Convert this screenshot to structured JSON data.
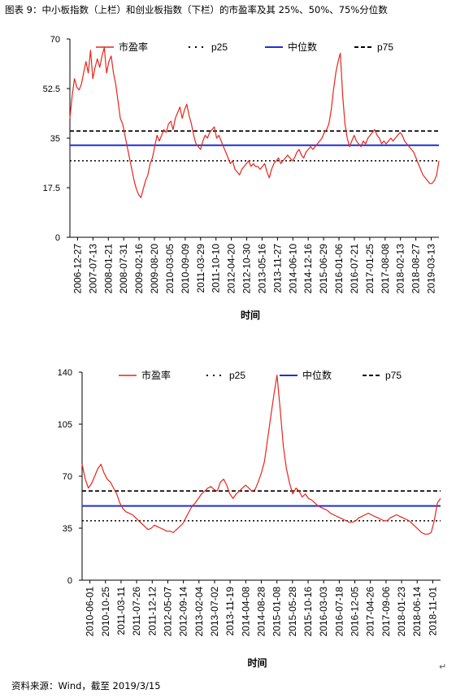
{
  "caption": "图表 9：中小板指数（上栏）和创业板指数（下栏）的市盈率及其 25%、50%、75%分位数",
  "source": "资料来源：Wind，截至 2019/3/15",
  "return_mark": "↵",
  "chart_data": [
    {
      "type": "line",
      "xlabel": "时间",
      "ylim": [
        0,
        70
      ],
      "yticks": [
        "0",
        "17.5",
        "35",
        "52.5",
        "70"
      ],
      "xticks": [
        "2006-12-27",
        "2007-07-13",
        "2008-01-21",
        "2008-07-31",
        "2009-02-16",
        "2009-08-20",
        "2010-03-05",
        "2010-09-09",
        "2011-03-29",
        "2011-10-10",
        "2012-04-20",
        "2012-10-30",
        "2013-05-16",
        "2013-11-27",
        "2014-06-10",
        "2014-12-16",
        "2015-06-29",
        "2016-01-06",
        "2016-07-21",
        "2017-01-25",
        "2017-08-08",
        "2018-02-13",
        "2018-08-27",
        "2019-03-13"
      ],
      "legend": [
        "市盈率",
        "p25",
        "中位数",
        "p75"
      ],
      "p25": 27,
      "median": 32.5,
      "p75": 37.5,
      "colors": {
        "pe": "#e8251b",
        "median": "#1f2fd6",
        "p": "#000000"
      },
      "series": [
        {
          "name": "市盈率",
          "values": [
            42,
            50,
            56,
            53,
            52,
            54,
            58,
            62,
            58,
            66,
            56,
            60,
            63,
            60,
            64,
            67,
            58,
            62,
            64,
            58,
            54,
            48,
            42,
            40,
            36,
            32,
            28,
            24,
            20,
            17,
            15,
            14,
            17,
            20,
            22,
            26,
            28,
            32,
            36,
            34,
            36,
            38,
            37,
            40,
            41,
            38,
            42,
            44,
            46,
            42,
            45,
            47,
            43,
            40,
            36,
            33,
            32,
            31,
            34,
            36,
            35,
            37,
            38,
            39,
            35,
            36,
            34,
            32,
            30,
            28,
            26,
            27,
            24,
            23,
            22,
            24,
            25,
            26,
            27,
            25,
            26,
            25,
            25,
            24,
            25,
            26,
            23,
            21,
            24,
            26,
            27,
            28,
            26,
            27,
            28,
            29,
            28,
            27,
            28,
            30,
            31,
            29,
            28,
            30,
            31,
            32,
            31,
            32,
            33,
            34,
            35,
            37,
            38,
            40,
            45,
            52,
            58,
            62,
            65,
            50,
            40,
            35,
            32,
            34,
            36,
            34,
            33,
            32,
            34,
            33,
            35,
            36,
            37,
            38,
            36,
            35,
            33,
            34,
            33,
            34,
            35,
            34,
            35,
            36,
            37,
            36,
            34,
            33,
            32,
            31,
            30,
            28,
            26,
            24,
            22,
            21,
            20,
            19,
            19,
            20,
            22,
            27
          ]
        }
      ]
    },
    {
      "type": "line",
      "xlabel": "时间",
      "ylim": [
        0,
        140
      ],
      "yticks": [
        "0",
        "35",
        "70",
        "105",
        "140"
      ],
      "xticks": [
        "2010-06-01",
        "2010-10-25",
        "2011-03-11",
        "2011-07-26",
        "2011-12-12",
        "2012-05-07",
        "2012-09-14",
        "2013-02-04",
        "2013-07-02",
        "2013-11-19",
        "2014-04-08",
        "2014-08-28",
        "2015-01-08",
        "2015-05-28",
        "2015-10-16",
        "2016-03-03",
        "2016-07-18",
        "2016-12-05",
        "2017-04-26",
        "2017-09-06",
        "2018-01-23",
        "2018-06-14",
        "2018-11-01"
      ],
      "legend": [
        "市盈率",
        "p25",
        "中位数",
        "p75"
      ],
      "p25": 40,
      "median": 50,
      "p75": 60,
      "colors": {
        "pe": "#e8251b",
        "median": "#1f2fd6",
        "p": "#000000"
      },
      "series": [
        {
          "name": "市盈率",
          "values": [
            78,
            68,
            62,
            65,
            70,
            75,
            78,
            72,
            68,
            66,
            62,
            58,
            52,
            48,
            46,
            45,
            44,
            42,
            40,
            38,
            36,
            34,
            35,
            37,
            36,
            35,
            34,
            33,
            33,
            32,
            34,
            36,
            38,
            42,
            46,
            50,
            52,
            55,
            58,
            60,
            62,
            63,
            61,
            60,
            66,
            68,
            64,
            58,
            55,
            58,
            60,
            62,
            64,
            62,
            60,
            61,
            66,
            72,
            80,
            95,
            110,
            125,
            138,
            115,
            90,
            75,
            65,
            58,
            62,
            60,
            56,
            58,
            55,
            54,
            52,
            50,
            49,
            48,
            47,
            45,
            44,
            43,
            42,
            41,
            40,
            39,
            39,
            40,
            42,
            43,
            44,
            45,
            44,
            43,
            42,
            41,
            40,
            40,
            42,
            43,
            44,
            43,
            42,
            41,
            40,
            38,
            36,
            34,
            32,
            31,
            31,
            32,
            40,
            52,
            55
          ]
        }
      ]
    }
  ]
}
